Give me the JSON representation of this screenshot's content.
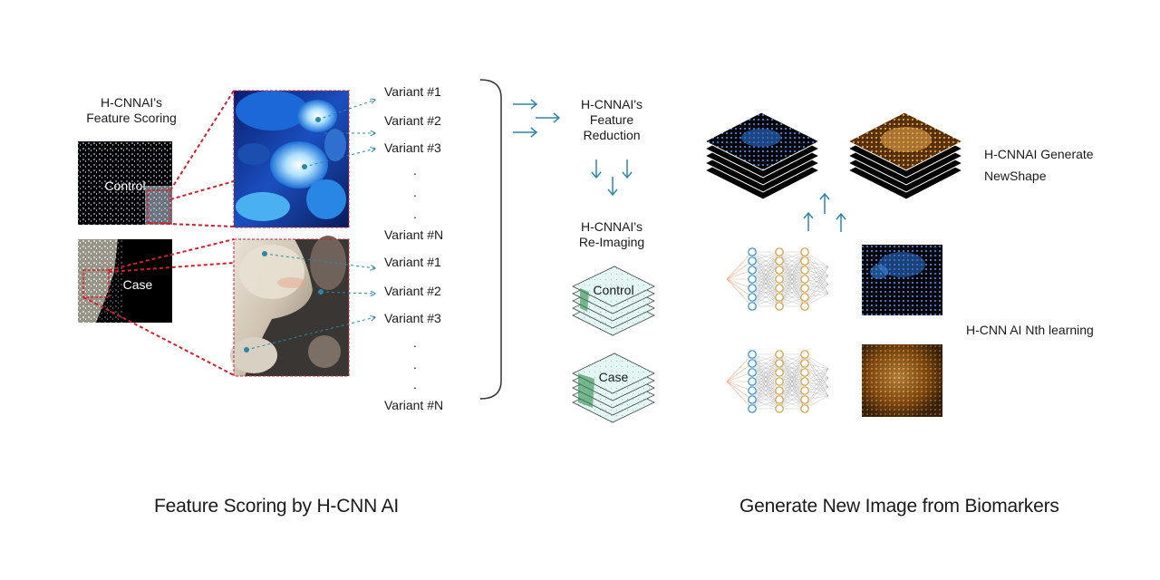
{
  "feature_scoring": {
    "title_line1": "H-CNNAI's",
    "title_line2": "Feature Scoring",
    "control_label": "Control",
    "case_label": "Case",
    "variants_top": [
      "Variant #1",
      "Variant #2",
      "Variant #3",
      ".",
      ".",
      ".",
      "Variant #N"
    ],
    "variants_bottom": [
      "Variant #1",
      "Variant #2",
      "Variant #3",
      ".",
      ".",
      ".",
      "Variant #N"
    ]
  },
  "feature_reduction": {
    "line1": "H-CNNAI's",
    "line2": "Feature",
    "line3": "Reduction"
  },
  "re_imaging": {
    "line1": "H-CNNAI's",
    "line2": "Re-Imaging",
    "control_label": "Control",
    "case_label": "Case"
  },
  "generate": {
    "line1": "H-CNNAI Generate",
    "line2": "NewShape"
  },
  "nth_learning": "H-CNN AI Nth learning",
  "captions": {
    "left": "Feature Scoring by H-CNN AI",
    "right": "Generate New Image from Biomarkers"
  },
  "colors": {
    "accent_teal": "#2e86a6",
    "dashed_red": "#d02030",
    "control_blue": "#2f7de0",
    "case_orange": "#d89238",
    "neuron_blue": "#2f8fd0",
    "neuron_orange": "#d2a040"
  }
}
